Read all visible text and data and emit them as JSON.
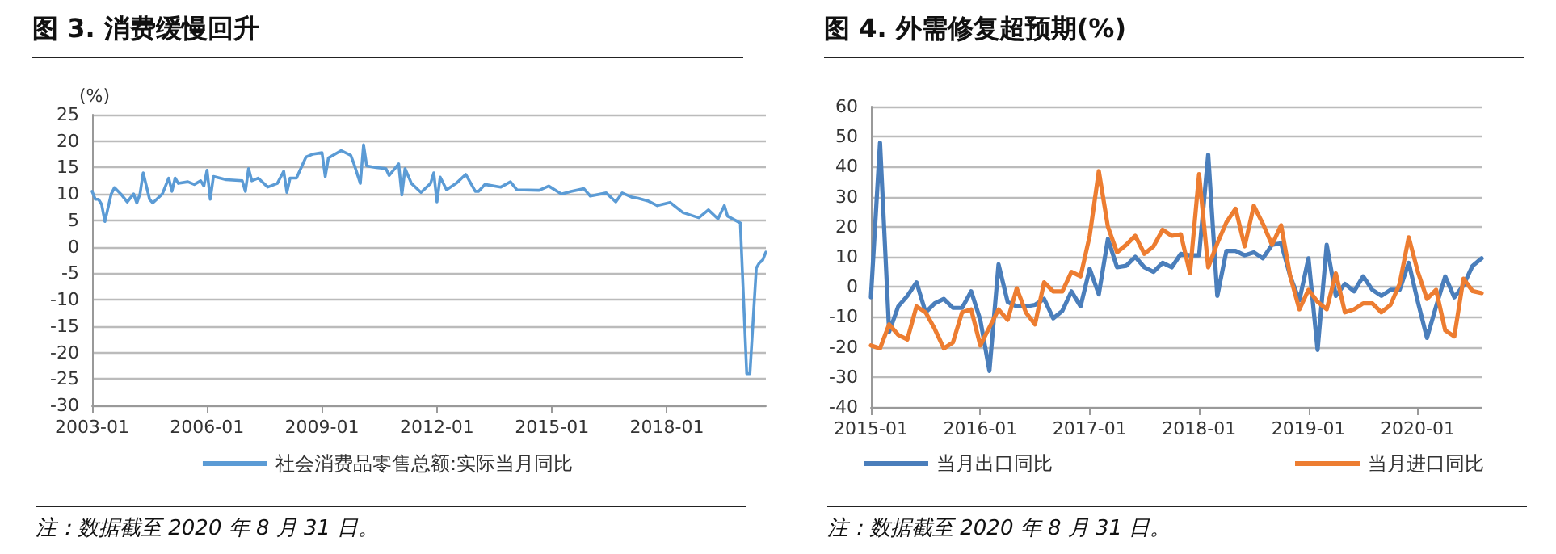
{
  "chart_data": [
    {
      "type": "line",
      "title": "图 3. 消费缓慢回升",
      "ylabel": "(%)",
      "annotations": [
        "注：数据截至 2020 年 8 月 31 日。"
      ],
      "xlim": [
        "2003-01",
        "2020-08"
      ],
      "xticks": [
        "2003-01",
        "2006-01",
        "2009-01",
        "2012-01",
        "2015-01",
        "2018-01"
      ],
      "ylim": [
        -30,
        25
      ],
      "yticks": [
        -30,
        -25,
        -20,
        -15,
        -10,
        -5,
        0,
        5,
        10,
        15,
        20,
        25
      ],
      "grid": "y",
      "legend": "bottom",
      "marker": "none",
      "line_style": "solid",
      "series": [
        {
          "name": "社会消费品零售总额:实际当月同比",
          "color": "#5b9bd5",
          "x": [
            "2003-01",
            "2003-02",
            "2003-03",
            "2003-04",
            "2003-05",
            "2003-07",
            "2003-08",
            "2003-10",
            "2003-12",
            "2004-02",
            "2004-03",
            "2004-04",
            "2004-05",
            "2004-07",
            "2004-08",
            "2004-11",
            "2005-01",
            "2005-02",
            "2005-03",
            "2005-04",
            "2005-07",
            "2005-09",
            "2005-11",
            "2005-12",
            "2006-01",
            "2006-02",
            "2006-03",
            "2006-07",
            "2006-12",
            "2007-01",
            "2007-02",
            "2007-03",
            "2007-05",
            "2007-08",
            "2007-11",
            "2008-01",
            "2008-02",
            "2008-03",
            "2008-05",
            "2008-08",
            "2008-10",
            "2009-01",
            "2009-02",
            "2009-03",
            "2009-07",
            "2009-10",
            "2009-11",
            "2010-01",
            "2010-02",
            "2010-03",
            "2010-06",
            "2010-09",
            "2010-10",
            "2011-01",
            "2011-02",
            "2011-03",
            "2011-05",
            "2011-08",
            "2011-11",
            "2011-12",
            "2012-01",
            "2012-02",
            "2012-04",
            "2012-07",
            "2012-10",
            "2013-01",
            "2013-02",
            "2013-04",
            "2013-09",
            "2013-12",
            "2014-02",
            "2014-09",
            "2014-12",
            "2015-04",
            "2015-07",
            "2015-11",
            "2016-01",
            "2016-06",
            "2016-09",
            "2016-11",
            "2017-02",
            "2017-04",
            "2017-07",
            "2017-10",
            "2018-02",
            "2018-06",
            "2018-11",
            "2019-02",
            "2019-05",
            "2019-07",
            "2019-08",
            "2019-12",
            "2020-02",
            "2020-03",
            "2020-04",
            "2020-05",
            "2020-06",
            "2020-07",
            "2020-08"
          ],
          "values": [
            10.5,
            9,
            9,
            8,
            4.8,
            10,
            11.2,
            10,
            8.5,
            10,
            8.3,
            10,
            14,
            9,
            8.3,
            10,
            13,
            10.5,
            13,
            12,
            12.3,
            11.8,
            12.5,
            11.5,
            14.5,
            9,
            13.3,
            12.7,
            12.5,
            10.5,
            14.8,
            12.5,
            13,
            11.3,
            12,
            14.3,
            10.3,
            13,
            13,
            17,
            17.5,
            17.8,
            13.3,
            16.8,
            18.2,
            17.3,
            15.7,
            12,
            19.3,
            15.3,
            15,
            14.8,
            13.5,
            15.7,
            9.8,
            14.8,
            12,
            10.3,
            12,
            14,
            8.5,
            13.2,
            10.8,
            12,
            13.7,
            10.5,
            10.5,
            11.8,
            11.3,
            12.3,
            10.8,
            10.7,
            11.5,
            10,
            10.5,
            11,
            9.6,
            10.2,
            8.5,
            10.2,
            9.4,
            9.2,
            8.7,
            7.8,
            8.4,
            6.5,
            5.5,
            7,
            5.3,
            7.8,
            5.8,
            4.5,
            -24,
            -24,
            -14,
            -4,
            -3,
            -2.5,
            -1
          ]
        }
      ]
    },
    {
      "type": "line",
      "title": "图 4. 外需修复超预期(%)",
      "annotations": [
        "注：数据截至 2020 年 8 月 31 日。"
      ],
      "categories": [
        "2015-01",
        null,
        null,
        null,
        null,
        null,
        null,
        null,
        null,
        null,
        null,
        null,
        "2016-01",
        null,
        null,
        null,
        null,
        null,
        null,
        null,
        null,
        null,
        null,
        null,
        "2017-01",
        null,
        null,
        null,
        null,
        null,
        null,
        null,
        null,
        null,
        null,
        null,
        "2018-01",
        null,
        null,
        null,
        null,
        null,
        null,
        null,
        null,
        null,
        null,
        null,
        "2019-01",
        null,
        null,
        null,
        null,
        null,
        null,
        null,
        null,
        null,
        null,
        null,
        "2020-01",
        null,
        null,
        null,
        null,
        null,
        null,
        null
      ],
      "ylim": [
        -40,
        60
      ],
      "yticks": [
        -40,
        -30,
        -20,
        -10,
        0,
        10,
        20,
        30,
        40,
        50,
        60
      ],
      "grid": "y",
      "legend": "bottom",
      "marker": "none",
      "line_style": "solid",
      "series": [
        {
          "name": "当月出口同比",
          "color": "#4a7ebb",
          "values": [
            -3.5,
            48,
            -15,
            -6.5,
            -3,
            1.5,
            -8.5,
            -5.5,
            -4,
            -7,
            -7,
            -1.5,
            -11,
            -28,
            7.5,
            -5,
            -6.5,
            -6.5,
            -6,
            -4,
            -10.5,
            -8,
            -1.5,
            -6.5,
            6,
            -2.5,
            16,
            6.5,
            7,
            10,
            6.5,
            5,
            8,
            6.5,
            11,
            10.5,
            10.5,
            44,
            -3,
            12,
            12,
            10.5,
            11.5,
            9.5,
            14,
            14.5,
            3.5,
            -4.5,
            9.5,
            -21,
            14,
            -3,
            1,
            -1.5,
            3.5,
            -1,
            -3,
            -1,
            -1,
            8,
            -5,
            -17,
            -6.5,
            3.5,
            -3.5,
            0.5,
            7,
            9.5
          ]
        },
        {
          "name": "当月进口同比",
          "color": "#ed7d31",
          "values": [
            -19.5,
            -20.5,
            -12.5,
            -16,
            -17.5,
            -6.5,
            -8.5,
            -14,
            -20.5,
            -18.5,
            -8.5,
            -7.5,
            -19.5,
            -13.5,
            -7.5,
            -11,
            -0.5,
            -8.5,
            -12.5,
            1.5,
            -1.5,
            -1.5,
            5,
            3.5,
            17,
            38.5,
            20,
            11.5,
            14,
            17,
            11,
            13.5,
            19,
            17,
            17.5,
            4.5,
            37.5,
            6.5,
            14.5,
            21.5,
            26,
            13.5,
            27,
            21,
            14,
            20.5,
            3.5,
            -7.5,
            -1,
            -5,
            -7.5,
            4.5,
            -8.5,
            -7.5,
            -5.5,
            -5.5,
            -8.5,
            -6,
            1,
            16.5,
            5,
            -4,
            -1,
            -14.5,
            -16.5,
            2.7,
            -1.4,
            -2.1
          ]
        }
      ]
    }
  ]
}
